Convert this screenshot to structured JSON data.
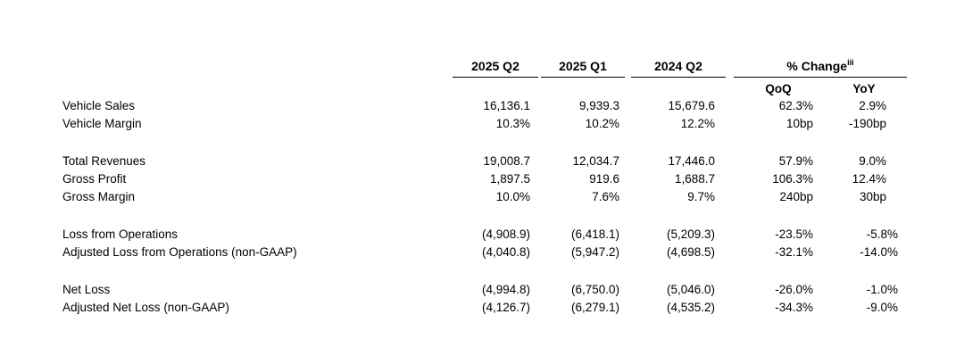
{
  "columns": {
    "q2_2025": "2025 Q2",
    "q1_2025": "2025 Q1",
    "q2_2024": "2024 Q2",
    "change": "% Change",
    "change_note": "iii",
    "qoq": "QoQ",
    "yoy": "YoY"
  },
  "rows": [
    {
      "label": "Vehicle Sales",
      "values": [
        "16,136.1",
        "9,939.3",
        "15,679.6",
        "62.3%",
        "2.9%"
      ]
    },
    {
      "label": "Vehicle Margin",
      "values": [
        "10.3%",
        "10.2%",
        "12.2%",
        "10bp",
        "-190bp"
      ]
    },
    {
      "label": "Total Revenues",
      "values": [
        "19,008.7",
        "12,034.7",
        "17,446.0",
        "57.9%",
        "9.0%"
      ]
    },
    {
      "label": "Gross Profit",
      "values": [
        "1,897.5",
        "919.6",
        "1,688.7",
        "106.3%",
        "12.4%"
      ]
    },
    {
      "label": "Gross Margin",
      "values": [
        "10.0%",
        "7.6%",
        "9.7%",
        "240bp",
        "30bp"
      ]
    },
    {
      "label": "Loss from Operations",
      "values": [
        "(4,908.9)",
        "(6,418.1)",
        "(5,209.3)",
        "-23.5%",
        "-5.8%"
      ]
    },
    {
      "label": "Adjusted Loss from Operations (non-GAAP)",
      "values": [
        "(4,040.8)",
        "(5,947.2)",
        "(4,698.5)",
        "-32.1%",
        "-14.0%"
      ]
    },
    {
      "label": "Net Loss",
      "values": [
        "(4,994.8)",
        "(6,750.0)",
        "(5,046.0)",
        "-26.0%",
        "-1.0%"
      ]
    },
    {
      "label": "Adjusted Net Loss (non-GAAP)",
      "values": [
        "(4,126.7)",
        "(6,279.1)",
        "(4,535.2)",
        "-34.3%",
        "-9.0%"
      ]
    }
  ]
}
